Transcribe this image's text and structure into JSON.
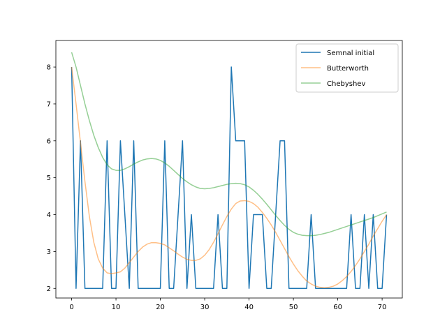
{
  "chart_data": {
    "type": "line",
    "title": "",
    "xlabel": "",
    "ylabel": "",
    "xlim": [
      -3.55,
      74.55
    ],
    "ylim": [
      1.74,
      8.72
    ],
    "xticks": [
      0,
      10,
      20,
      30,
      40,
      50,
      60,
      70
    ],
    "yticks": [
      2,
      3,
      4,
      5,
      6,
      7,
      8
    ],
    "grid": false,
    "legend_position": "top-right",
    "series": [
      {
        "name": "Semnal initial",
        "color": "#1f77b4",
        "alpha": 1.0,
        "x": [
          0,
          1,
          2,
          3,
          4,
          5,
          6,
          7,
          8,
          9,
          10,
          11,
          12,
          13,
          14,
          15,
          16,
          17,
          18,
          19,
          20,
          21,
          22,
          23,
          24,
          25,
          26,
          27,
          28,
          29,
          30,
          31,
          32,
          33,
          34,
          35,
          36,
          37,
          38,
          39,
          40,
          41,
          42,
          43,
          44,
          45,
          46,
          47,
          48,
          49,
          50,
          51,
          52,
          53,
          54,
          55,
          56,
          57,
          58,
          59,
          60,
          61,
          62,
          63,
          64,
          65,
          66,
          67,
          68,
          69,
          70,
          71
        ],
        "y": [
          8,
          2,
          6,
          2,
          2,
          2,
          2,
          2,
          6,
          2,
          2,
          6,
          4,
          2,
          6,
          2,
          2,
          2,
          2,
          2,
          2,
          6,
          2,
          2,
          4,
          6,
          2,
          4,
          2,
          2,
          2,
          2,
          2,
          4,
          2,
          2,
          8,
          6,
          6,
          6,
          2,
          4,
          4,
          4,
          2,
          2,
          4,
          6,
          6,
          2,
          2,
          2,
          2,
          2,
          4,
          2,
          2,
          2,
          2,
          2,
          2,
          2,
          2,
          4,
          2,
          2,
          4,
          2,
          4,
          2,
          2,
          4
        ]
      },
      {
        "name": "Butterworth",
        "color": "#ff7f0e",
        "alpha": 0.5,
        "x": [
          0,
          1,
          2,
          3,
          4,
          5,
          6,
          7,
          8,
          9,
          10,
          11,
          12,
          13,
          14,
          15,
          16,
          17,
          18,
          19,
          20,
          21,
          22,
          23,
          24,
          25,
          26,
          27,
          28,
          29,
          30,
          31,
          32,
          33,
          34,
          35,
          36,
          37,
          38,
          39,
          40,
          41,
          42,
          43,
          44,
          45,
          46,
          47,
          48,
          49,
          50,
          51,
          52,
          53,
          54,
          55,
          56,
          57,
          58,
          59,
          60,
          61,
          62,
          63,
          64,
          65,
          66,
          67,
          68,
          69,
          70,
          71
        ],
        "y": [
          8.0,
          7.0,
          5.95,
          4.9,
          3.95,
          3.25,
          2.8,
          2.55,
          2.42,
          2.4,
          2.42,
          2.45,
          2.55,
          2.7,
          2.85,
          3.0,
          3.12,
          3.2,
          3.24,
          3.24,
          3.22,
          3.18,
          3.1,
          3.02,
          2.93,
          2.85,
          2.79,
          2.76,
          2.76,
          2.8,
          2.9,
          3.05,
          3.25,
          3.48,
          3.72,
          3.95,
          4.15,
          4.3,
          4.37,
          4.38,
          4.36,
          4.3,
          4.2,
          4.06,
          3.9,
          3.72,
          3.52,
          3.3,
          3.08,
          2.86,
          2.66,
          2.48,
          2.33,
          2.2,
          2.12,
          2.06,
          2.03,
          2.02,
          2.03,
          2.06,
          2.12,
          2.21,
          2.32,
          2.46,
          2.62,
          2.8,
          3.0,
          3.2,
          3.42,
          3.62,
          3.82,
          4.0
        ]
      },
      {
        "name": "Chebyshev",
        "color": "#2ca02c",
        "alpha": 0.5,
        "x": [
          0,
          1,
          2,
          3,
          4,
          5,
          6,
          7,
          8,
          9,
          10,
          11,
          12,
          13,
          14,
          15,
          16,
          17,
          18,
          19,
          20,
          21,
          22,
          23,
          24,
          25,
          26,
          27,
          28,
          29,
          30,
          31,
          32,
          33,
          34,
          35,
          36,
          37,
          38,
          39,
          40,
          41,
          42,
          43,
          44,
          45,
          46,
          47,
          48,
          49,
          50,
          51,
          52,
          53,
          54,
          55,
          56,
          57,
          58,
          59,
          60,
          61,
          62,
          63,
          64,
          65,
          66,
          67,
          68,
          69,
          70,
          71
        ],
        "y": [
          8.4,
          8.0,
          7.5,
          7.0,
          6.55,
          6.15,
          5.82,
          5.55,
          5.35,
          5.24,
          5.2,
          5.2,
          5.24,
          5.3,
          5.37,
          5.43,
          5.48,
          5.51,
          5.52,
          5.51,
          5.47,
          5.4,
          5.31,
          5.2,
          5.09,
          4.98,
          4.89,
          4.81,
          4.75,
          4.71,
          4.7,
          4.71,
          4.73,
          4.76,
          4.79,
          4.82,
          4.84,
          4.85,
          4.84,
          4.81,
          4.75,
          4.66,
          4.55,
          4.42,
          4.28,
          4.13,
          3.98,
          3.84,
          3.71,
          3.6,
          3.52,
          3.47,
          3.44,
          3.43,
          3.43,
          3.44,
          3.46,
          3.49,
          3.52,
          3.56,
          3.6,
          3.64,
          3.68,
          3.72,
          3.76,
          3.8,
          3.84,
          3.88,
          3.92,
          3.97,
          4.02,
          4.07
        ]
      }
    ]
  }
}
